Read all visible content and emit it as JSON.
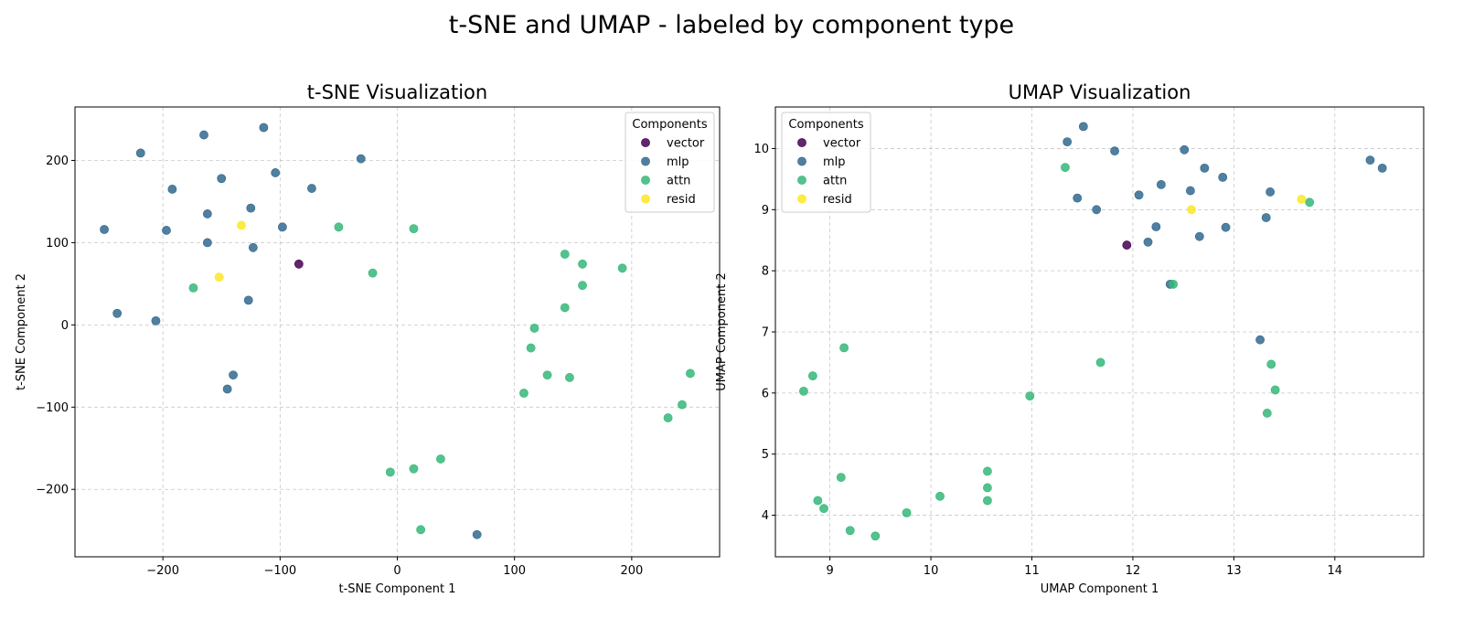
{
  "figure": {
    "title": "t-SNE and UMAP - labeled by component type"
  },
  "colors": {
    "vector": "#440154",
    "mlp": "#31688e",
    "attn": "#35b779",
    "resid": "#fde725"
  },
  "chart_data": [
    {
      "type": "scatter",
      "title": "t-SNE Visualization",
      "xlabel": "t-SNE Component 1",
      "ylabel": "t-SNE Component 2",
      "xlim": [
        -275,
        275
      ],
      "ylim": [
        -282,
        265
      ],
      "xticks": [
        -200,
        -100,
        0,
        100,
        200
      ],
      "yticks": [
        -200,
        -100,
        0,
        100,
        200
      ],
      "grid": true,
      "legend": {
        "title": "Components",
        "placement": "upper-right"
      },
      "series": [
        {
          "name": "vector",
          "x": [
            -84
          ],
          "y": [
            74
          ]
        },
        {
          "name": "mlp",
          "x": [
            -250,
            -219,
            -165,
            -114,
            -192,
            -150,
            -104,
            -31,
            -73,
            -197,
            -162,
            -125,
            -98,
            -162,
            -123,
            -127,
            -239,
            -206,
            -140,
            -145,
            68
          ],
          "y": [
            116,
            209,
            231,
            240,
            165,
            178,
            185,
            202,
            166,
            115,
            135,
            142,
            119,
            100,
            94,
            30,
            14,
            5,
            -61,
            -78,
            -255
          ]
        },
        {
          "name": "attn",
          "x": [
            -50,
            14,
            -174,
            -21,
            143,
            158,
            192,
            158,
            143,
            117,
            114,
            128,
            147,
            108,
            250,
            243,
            231,
            -6,
            14,
            37,
            20
          ],
          "y": [
            119,
            117,
            45,
            63,
            86,
            74,
            69,
            48,
            21,
            -4,
            -28,
            -61,
            -64,
            -83,
            -59,
            -97,
            -113,
            -179,
            -175,
            -163,
            -249
          ]
        },
        {
          "name": "resid",
          "x": [
            -133,
            -152
          ],
          "y": [
            121,
            58
          ]
        }
      ]
    },
    {
      "type": "scatter",
      "title": "UMAP Visualization",
      "xlabel": "UMAP Component 1",
      "ylabel": "UMAP Component 2",
      "xlim": [
        8.46,
        14.88
      ],
      "ylim": [
        3.32,
        10.68
      ],
      "xticks": [
        9,
        10,
        11,
        12,
        13,
        14
      ],
      "yticks": [
        4,
        5,
        6,
        7,
        8,
        9,
        10
      ],
      "grid": true,
      "legend": {
        "title": "Components",
        "placement": "upper-left"
      },
      "series": [
        {
          "name": "vector",
          "x": [
            11.94
          ],
          "y": [
            8.42
          ]
        },
        {
          "name": "mlp",
          "x": [
            11.35,
            11.51,
            11.82,
            12.51,
            12.71,
            12.89,
            12.57,
            12.28,
            12.06,
            11.45,
            11.64,
            12.23,
            12.15,
            12.66,
            12.92,
            13.32,
            13.36,
            14.35,
            14.47,
            12.37,
            13.26
          ],
          "y": [
            10.11,
            10.36,
            9.96,
            9.98,
            9.68,
            9.53,
            9.31,
            9.41,
            9.24,
            9.19,
            9.0,
            8.72,
            8.47,
            8.56,
            8.71,
            8.87,
            9.29,
            9.81,
            9.68,
            7.78,
            6.87
          ]
        },
        {
          "name": "attn",
          "x": [
            11.33,
            13.75,
            12.4,
            11.68,
            9.14,
            8.83,
            8.74,
            10.98,
            13.37,
            13.41,
            13.33,
            10.56,
            9.11,
            10.56,
            10.09,
            10.56,
            8.88,
            8.94,
            9.76,
            9.2,
            9.45
          ],
          "y": [
            9.69,
            9.12,
            7.78,
            6.5,
            6.74,
            6.28,
            6.03,
            5.95,
            6.47,
            6.05,
            5.67,
            4.72,
            4.62,
            4.45,
            4.31,
            4.24,
            4.24,
            4.11,
            4.04,
            3.75,
            3.66
          ]
        },
        {
          "name": "resid",
          "x": [
            12.58,
            13.67
          ],
          "y": [
            9.0,
            9.17
          ]
        }
      ]
    }
  ]
}
